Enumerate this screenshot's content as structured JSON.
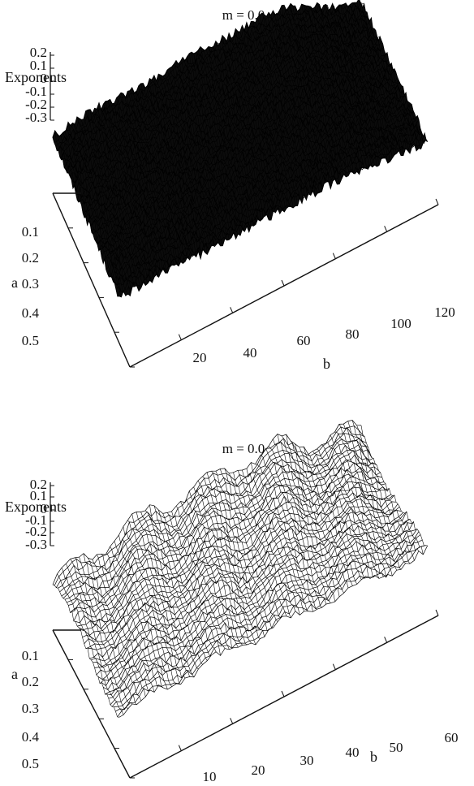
{
  "chart_data": [
    {
      "type": "surface",
      "title": "m = 0.0",
      "zlabel": "Exponents",
      "xlabel": "b",
      "ylabel": "a",
      "z_ticks": [
        "0.2",
        "0.1",
        "0",
        "-0.1",
        "-0.2",
        "-0.3"
      ],
      "a_ticks": [
        "0.1",
        "0.2",
        "0.3",
        "0.4",
        "0.5"
      ],
      "b_ticks": [
        "20",
        "40",
        "60",
        "80",
        "100",
        "120"
      ],
      "xlim": [
        0,
        120
      ],
      "ylim": [
        0,
        0.5
      ],
      "zlim": [
        -0.3,
        0.2
      ],
      "surface_style": "dense solid wireframe",
      "ridge_b": [
        0,
        10,
        20,
        30,
        40,
        50,
        60,
        70,
        80,
        90,
        100,
        110,
        120
      ],
      "ridge_z": [
        0.08,
        0.1,
        0.12,
        0.1,
        0.11,
        0.13,
        0.14,
        0.13,
        0.15,
        0.12,
        0.05,
        -0.05,
        -0.1
      ]
    },
    {
      "type": "surface",
      "title": "m = 0.0",
      "zlabel": "Exponents",
      "xlabel": "b",
      "ylabel": "a",
      "z_ticks": [
        "0.2",
        "0.1",
        "0",
        "-0.1",
        "-0.2",
        "-0.3"
      ],
      "a_ticks": [
        "0.1",
        "0.2",
        "0.3",
        "0.4",
        "0.5"
      ],
      "b_ticks": [
        "10",
        "20",
        "30",
        "40",
        "50",
        "60"
      ],
      "xlim": [
        0,
        60
      ],
      "ylim": [
        0,
        0.5
      ],
      "zlim": [
        -0.3,
        0.2
      ],
      "surface_style": "open wireframe with ridges",
      "ridge_b": [
        0,
        5,
        10,
        15,
        20,
        25,
        30,
        35,
        40,
        45,
        50,
        55,
        60
      ],
      "ridge_z": [
        0.0,
        0.05,
        0.1,
        0.12,
        0.14,
        0.15,
        0.13,
        0.16,
        0.15,
        0.12,
        0.06,
        0.0,
        -0.05
      ]
    }
  ]
}
